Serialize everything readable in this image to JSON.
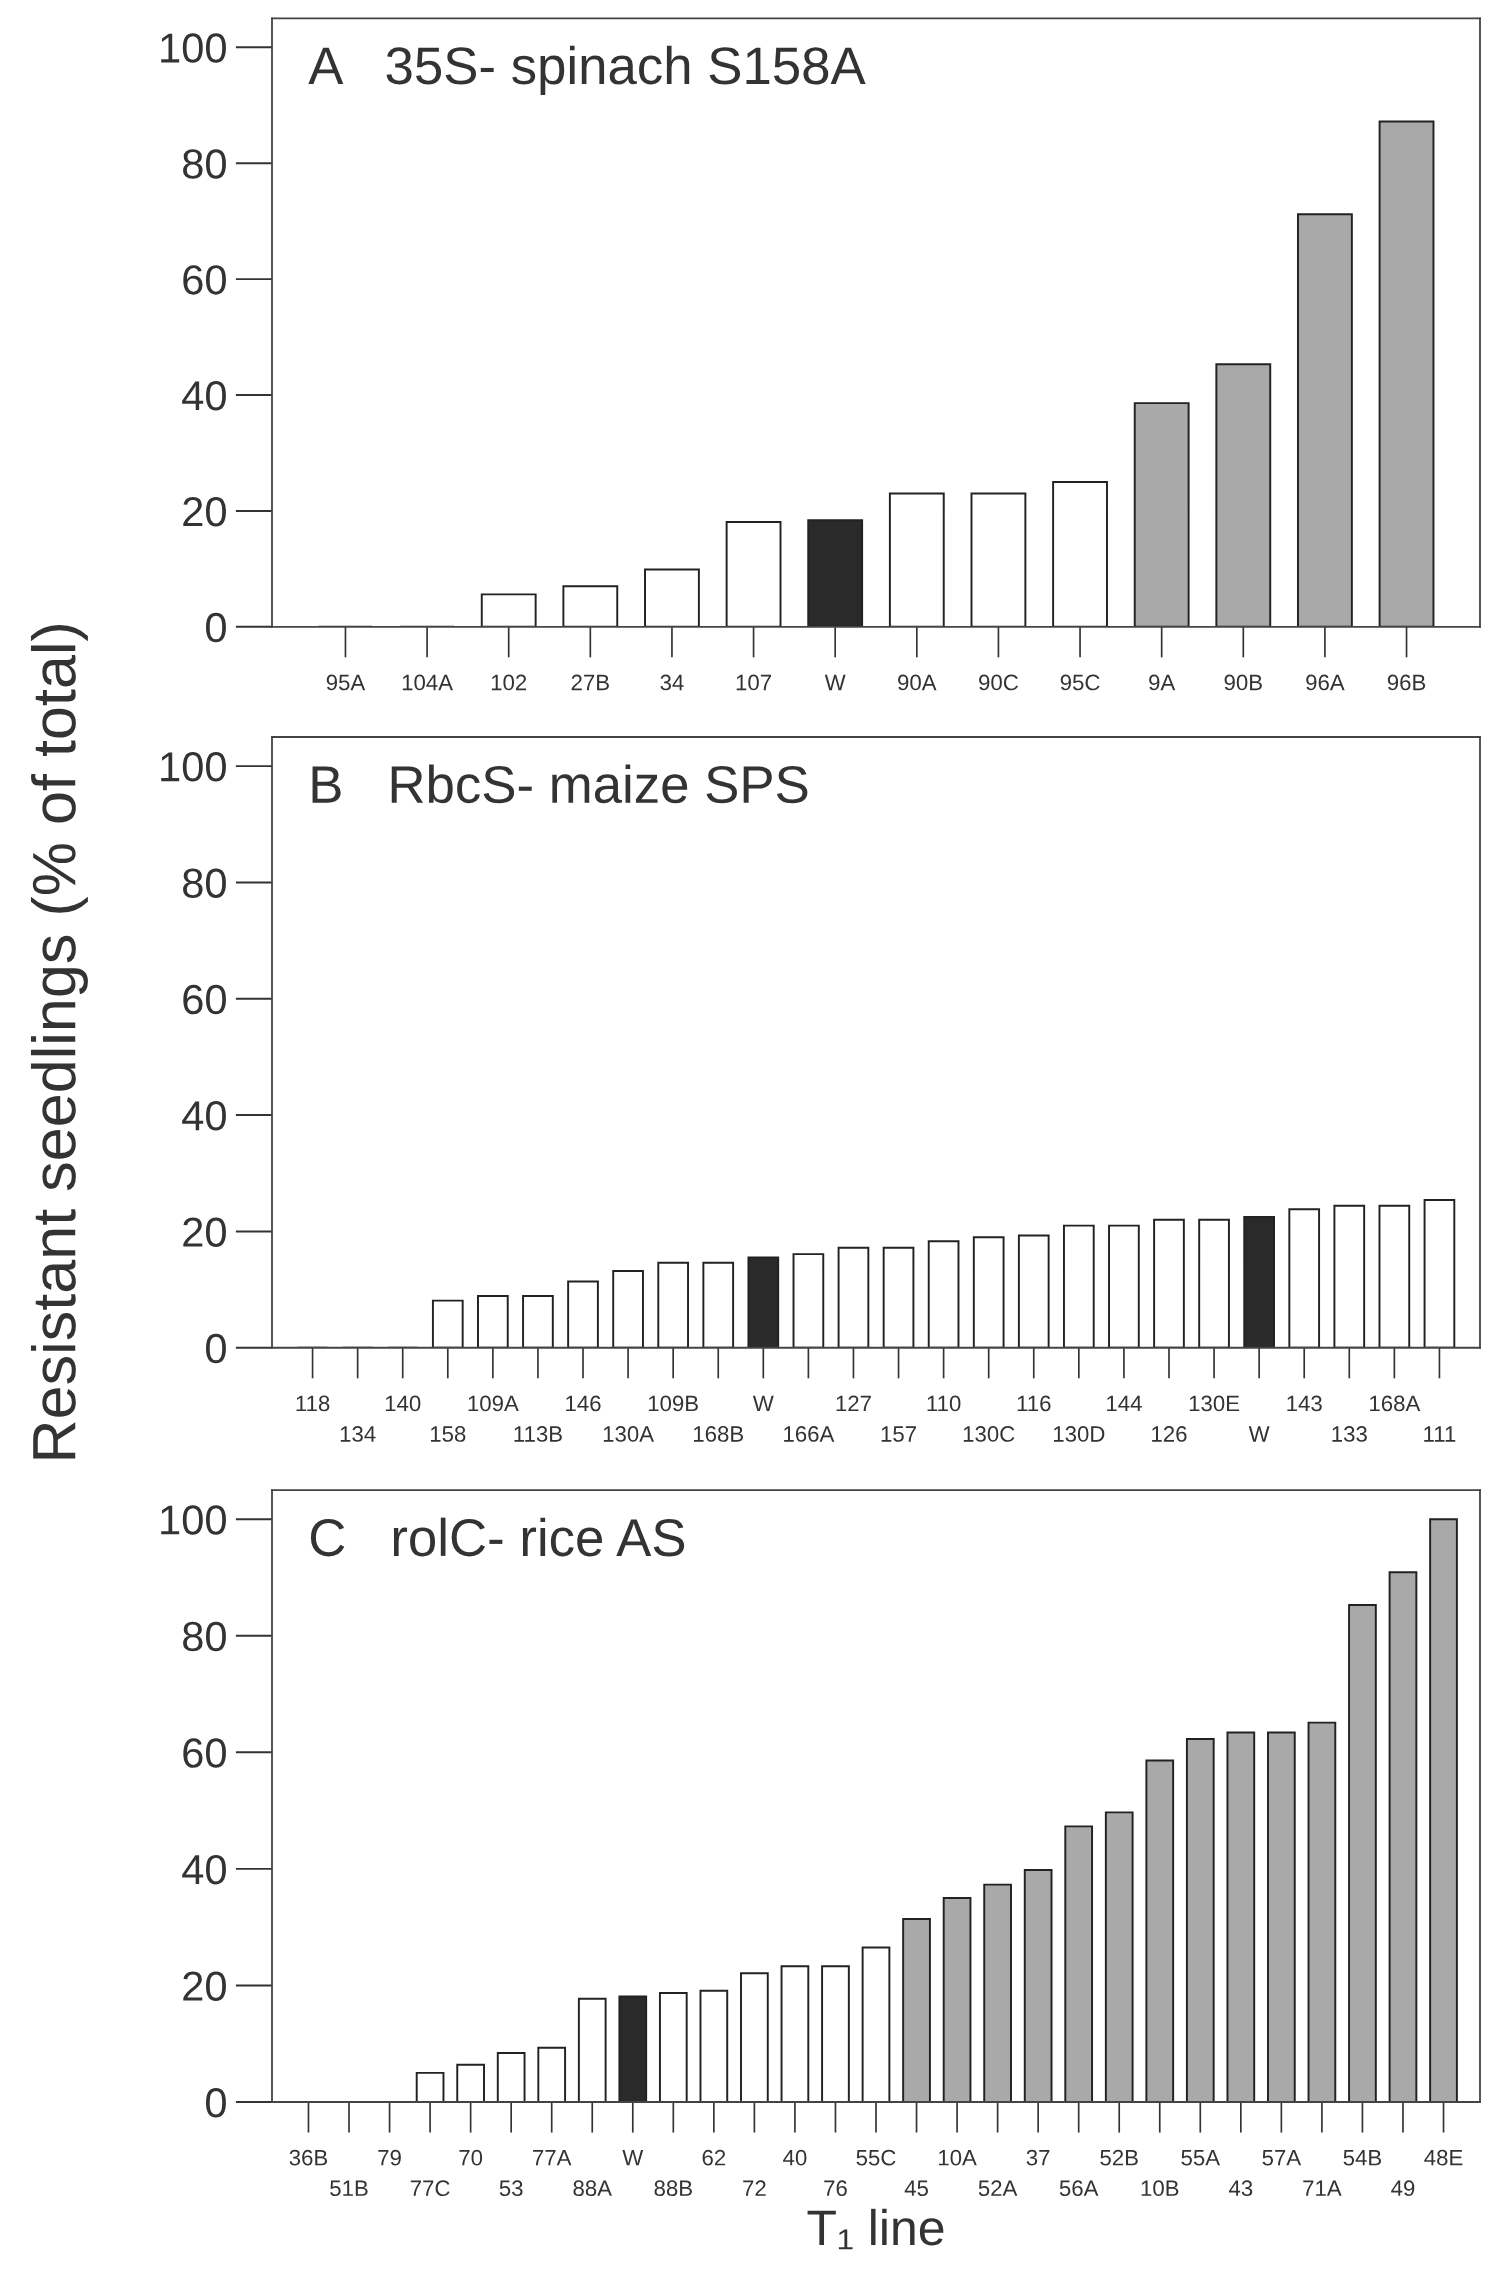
{
  "chart_data": [
    {
      "type": "bar",
      "title": "A   35S- spinach S158A",
      "categories": [
        "95A",
        "104A",
        "102",
        "27B",
        "34",
        "107",
        "W",
        "90A",
        "90C",
        "95C",
        "9A",
        "90B",
        "96A",
        "96B"
      ],
      "values": [
        0,
        0,
        5.6,
        7,
        9.9,
        18.1,
        18.4,
        23,
        23,
        25,
        38.6,
        45.3,
        71.2,
        87.2
      ],
      "colors": [
        "#222222",
        "#222222",
        "#ffffff",
        "#ffffff",
        "#ffffff",
        "#ffffff",
        "#2a2a2a",
        "#ffffff",
        "#ffffff",
        "#ffffff",
        "#a9a9a9",
        "#a9a9a9",
        "#a9a9a9",
        "#a9a9a9"
      ],
      "ylim": [
        0,
        105
      ],
      "yticks": [
        0,
        20,
        40,
        60,
        80,
        100
      ],
      "grid": false,
      "legend": false
    },
    {
      "type": "bar",
      "title": "B   RbcS- maize SPS",
      "ylabel": "Resistant seedlings (% of total)",
      "categories": [
        "118",
        "134",
        "140",
        "158",
        "109A",
        "113B",
        "146",
        "130A",
        "109B",
        "168B",
        "W",
        "166A",
        "127",
        "157",
        "110",
        "130C",
        "116",
        "130D",
        "144",
        "126",
        "130E",
        "W",
        "143",
        "133",
        "168A",
        "111"
      ],
      "values": [
        0,
        0,
        0,
        8.1,
        8.9,
        8.9,
        11.4,
        13.2,
        14.6,
        14.6,
        15.5,
        16.1,
        17.2,
        17.2,
        18.3,
        19,
        19.3,
        21,
        21,
        22,
        22,
        22.5,
        23.8,
        24.4,
        24.4,
        25.4
      ],
      "colors": [
        "#222222",
        "#222222",
        "#222222",
        "#ffffff",
        "#ffffff",
        "#ffffff",
        "#ffffff",
        "#ffffff",
        "#ffffff",
        "#ffffff",
        "#2a2a2a",
        "#ffffff",
        "#ffffff",
        "#ffffff",
        "#ffffff",
        "#ffffff",
        "#ffffff",
        "#ffffff",
        "#ffffff",
        "#ffffff",
        "#ffffff",
        "#2a2a2a",
        "#ffffff",
        "#ffffff",
        "#ffffff",
        "#ffffff"
      ],
      "ylim": [
        0,
        105
      ],
      "yticks": [
        0,
        20,
        40,
        60,
        80,
        100
      ],
      "grid": false,
      "legend": false
    },
    {
      "type": "bar",
      "title": "C   rolC- rice AS",
      "xlabel": "T₁ line",
      "categories": [
        "36B",
        "51B",
        "79",
        "77C",
        "70",
        "53",
        "77A",
        "88A",
        "W",
        "88B",
        "62",
        "72",
        "40",
        "76",
        "55C",
        "45",
        "10A",
        "52A",
        "37",
        "56A",
        "52B",
        "10B",
        "55A",
        "43",
        "57A",
        "71A",
        "54B",
        "49",
        "48E"
      ],
      "values": [
        0,
        0,
        0,
        5,
        6.4,
        8.4,
        9.3,
        17.7,
        18.1,
        18.7,
        19.1,
        22.1,
        23.3,
        23.3,
        26.5,
        31.4,
        35,
        37.3,
        39.8,
        47.3,
        49.7,
        58.6,
        62.3,
        63.4,
        63.4,
        65.1,
        85.3,
        90.9,
        100
      ],
      "colors": [
        "#222222",
        "#222222",
        "#222222",
        "#ffffff",
        "#ffffff",
        "#ffffff",
        "#ffffff",
        "#ffffff",
        "#2a2a2a",
        "#ffffff",
        "#ffffff",
        "#ffffff",
        "#ffffff",
        "#ffffff",
        "#ffffff",
        "#a9a9a9",
        "#a9a9a9",
        "#a9a9a9",
        "#a9a9a9",
        "#a9a9a9",
        "#a9a9a9",
        "#a9a9a9",
        "#a9a9a9",
        "#a9a9a9",
        "#a9a9a9",
        "#a9a9a9",
        "#a9a9a9",
        "#a9a9a9",
        "#a9a9a9"
      ],
      "ylim": [
        0,
        105
      ],
      "yticks": [
        0,
        20,
        40,
        60,
        80,
        100
      ],
      "grid": false,
      "legend": false
    }
  ]
}
